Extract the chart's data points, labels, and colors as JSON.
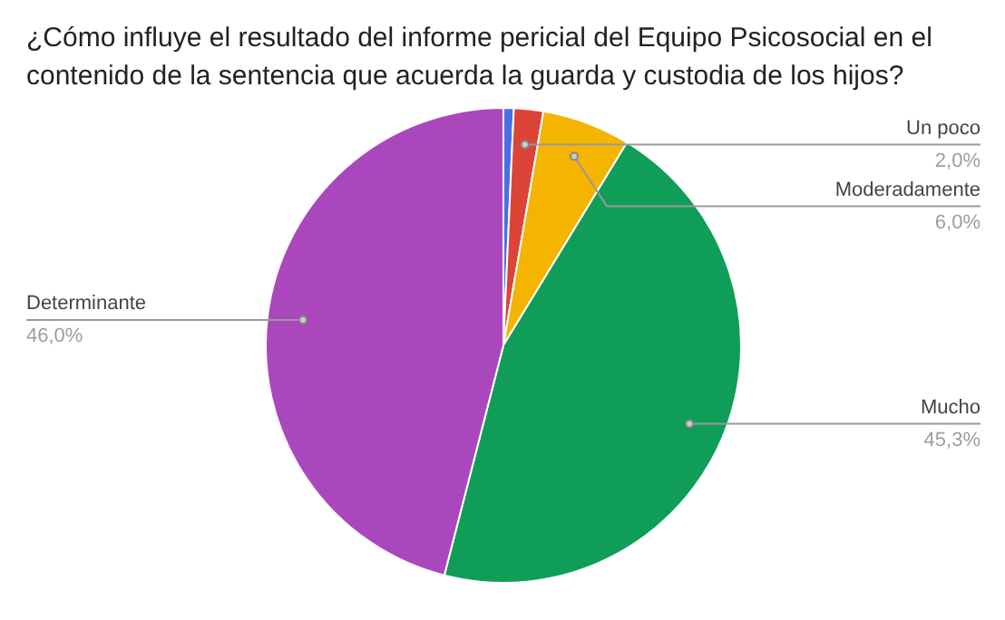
{
  "chart_data": {
    "type": "pie",
    "title": "¿Cómo influye el resultado del informe pericial del Equipo Psicosocial en el\ncontenido de la sentencia que acuerda la guarda y custodia de los hijos?",
    "categories": [
      null,
      "Un poco",
      "Moderadamente",
      "Mucho",
      "Determinante"
    ],
    "values": [
      0.7,
      2.0,
      6.0,
      45.3,
      46.0
    ],
    "colors": [
      "#4a6fe3",
      "#db4437",
      "#f4b400",
      "#0f9d58",
      "#ab47bc"
    ],
    "value_labels": [
      null,
      "2,0%",
      "6,0%",
      "45,3%",
      "46,0%"
    ]
  }
}
